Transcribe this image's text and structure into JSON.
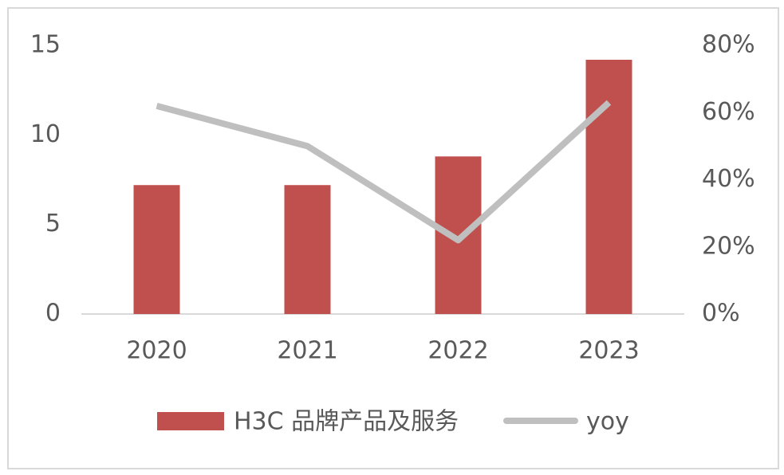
{
  "chart_data": {
    "type": "bar",
    "categories": [
      "2020",
      "2021",
      "2022",
      "2023"
    ],
    "series": [
      {
        "name": "H3C 品牌产品及服务",
        "color": "#c0504d",
        "values": [
          7.2,
          7.2,
          8.8,
          14.2
        ]
      },
      {
        "name": "yoy",
        "color": "#bfbfbf",
        "type": "line",
        "axis": "y2",
        "values": [
          62,
          50,
          22,
          63
        ]
      }
    ],
    "ylim": [
      0,
      15
    ],
    "yticks": [
      0,
      5,
      10,
      15
    ],
    "y2lim": [
      0,
      80
    ],
    "y2ticks": [
      {
        "value": 0,
        "label": "0%"
      },
      {
        "value": 20,
        "label": "20%"
      },
      {
        "value": 40,
        "label": "40%"
      },
      {
        "value": 60,
        "label": "60%"
      },
      {
        "value": 80,
        "label": "80%"
      }
    ],
    "grid": false,
    "legend": "bottom"
  }
}
